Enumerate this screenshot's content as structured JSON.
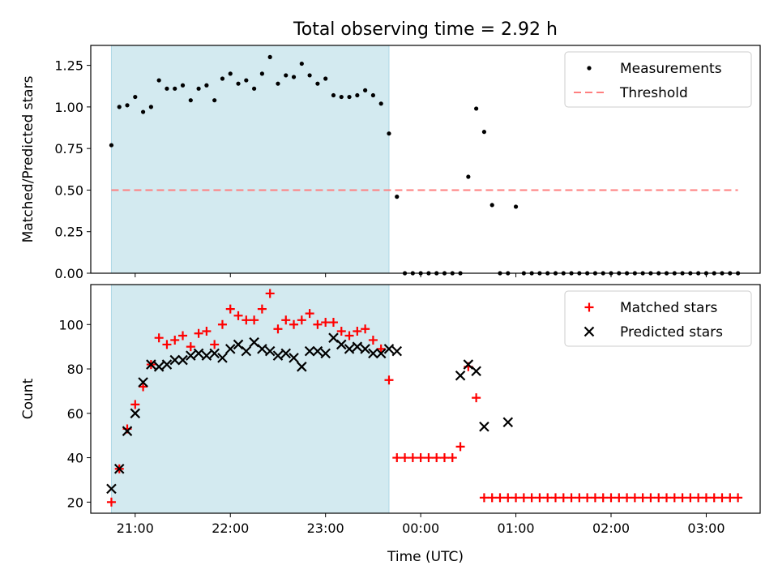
{
  "title": "Total observing time = 2.92 h",
  "colors": {
    "shade": "#d3eaf0",
    "shade_edge": "#add8e6",
    "threshold": "#ff7f7f",
    "matched": "#ff0000",
    "predicted": "#000000",
    "measurement": "#000000"
  },
  "chart_data": [
    {
      "type": "scatter",
      "title": "Total observing time = 2.92 h",
      "xlabel": "",
      "ylabel": "Matched/Predicted stars",
      "xlim": [
        "20:32",
        "03:34"
      ],
      "ylim": [
        0,
        1.37
      ],
      "yticks": [
        "0.00",
        "0.25",
        "0.50",
        "0.75",
        "1.00",
        "1.25"
      ],
      "ytick_values": [
        0,
        0.25,
        0.5,
        0.75,
        1.0,
        1.25
      ],
      "observing_window": [
        "20:45",
        "23:40"
      ],
      "legend_position": "upper right",
      "legend": [
        "Measurements",
        "Threshold"
      ],
      "series": [
        {
          "name": "Measurements",
          "x": [
            "20:45",
            "20:50",
            "20:55",
            "21:00",
            "21:05",
            "21:10",
            "21:15",
            "21:20",
            "21:25",
            "21:30",
            "21:35",
            "21:40",
            "21:45",
            "21:50",
            "21:55",
            "22:00",
            "22:05",
            "22:10",
            "22:15",
            "22:20",
            "22:25",
            "22:30",
            "22:35",
            "22:40",
            "22:45",
            "22:50",
            "22:55",
            "23:00",
            "23:05",
            "23:10",
            "23:15",
            "23:20",
            "23:25",
            "23:30",
            "23:35",
            "23:40",
            "23:45",
            "23:50",
            "23:55",
            "00:00",
            "00:05",
            "00:10",
            "00:15",
            "00:20",
            "00:25",
            "00:30",
            "00:35",
            "00:40",
            "00:45",
            "00:50",
            "00:55",
            "01:00",
            "01:05",
            "01:10",
            "01:15",
            "01:20",
            "01:25",
            "01:30",
            "01:35",
            "01:40",
            "01:45",
            "01:50",
            "01:55",
            "02:00",
            "02:05",
            "02:10",
            "02:15",
            "02:20",
            "02:25",
            "02:30",
            "02:35",
            "02:40",
            "02:45",
            "02:50",
            "02:55",
            "03:00",
            "03:05",
            "03:10",
            "03:15",
            "03:20"
          ],
          "y": [
            0.77,
            1.0,
            1.01,
            1.06,
            0.97,
            1.0,
            1.16,
            1.11,
            1.11,
            1.13,
            1.04,
            1.11,
            1.13,
            1.04,
            1.17,
            1.2,
            1.14,
            1.16,
            1.11,
            1.2,
            1.3,
            1.14,
            1.19,
            1.18,
            1.26,
            1.19,
            1.14,
            1.17,
            1.07,
            1.06,
            1.06,
            1.07,
            1.1,
            1.07,
            1.02,
            0.84,
            0.46,
            0,
            0,
            0,
            0,
            0,
            0,
            0,
            0,
            0.58,
            0.99,
            0.85,
            0.41,
            0,
            0,
            0.4,
            0,
            0,
            0,
            0,
            0,
            0,
            0,
            0,
            0,
            0,
            0,
            0,
            0,
            0,
            0,
            0,
            0,
            0,
            0,
            0,
            0,
            0,
            0,
            0,
            0,
            0,
            0,
            0
          ]
        },
        {
          "name": "Threshold",
          "x": [
            "20:45",
            "03:20"
          ],
          "y": [
            0.5,
            0.5
          ]
        }
      ]
    },
    {
      "type": "scatter",
      "xlabel": "Time (UTC)",
      "ylabel": "Count",
      "xlim": [
        "20:32",
        "03:34"
      ],
      "ylim": [
        15,
        118
      ],
      "yticks": [
        "20",
        "40",
        "60",
        "80",
        "100"
      ],
      "ytick_values": [
        20,
        40,
        60,
        80,
        100
      ],
      "xticks": [
        "21:00",
        "22:00",
        "23:00",
        "00:00",
        "01:00",
        "02:00",
        "03:00"
      ],
      "observing_window": [
        "20:45",
        "23:40"
      ],
      "legend_position": "upper right",
      "legend": [
        "Matched stars",
        "Predicted stars"
      ],
      "series": [
        {
          "name": "Matched stars",
          "x": [
            "20:45",
            "20:50",
            "20:55",
            "21:00",
            "21:05",
            "21:10",
            "21:15",
            "21:20",
            "21:25",
            "21:30",
            "21:35",
            "21:40",
            "21:45",
            "21:50",
            "21:55",
            "22:00",
            "22:05",
            "22:10",
            "22:15",
            "22:20",
            "22:25",
            "22:30",
            "22:35",
            "22:40",
            "22:45",
            "22:50",
            "22:55",
            "23:00",
            "23:05",
            "23:10",
            "23:15",
            "23:20",
            "23:25",
            "23:30",
            "23:35",
            "23:40",
            "23:45",
            "23:50",
            "23:55",
            "00:00",
            "00:05",
            "00:10",
            "00:15",
            "00:20",
            "00:25",
            "00:30",
            "00:35",
            "00:40",
            "00:45",
            "00:50",
            "00:55",
            "01:00",
            "01:05",
            "01:10",
            "01:15",
            "01:20",
            "01:25",
            "01:30",
            "01:35",
            "01:40",
            "01:45",
            "01:50",
            "01:55",
            "02:00",
            "02:05",
            "02:10",
            "02:15",
            "02:20",
            "02:25",
            "02:30",
            "02:35",
            "02:40",
            "02:45",
            "02:50",
            "02:55",
            "03:00",
            "03:05",
            "03:10",
            "03:15",
            "03:20"
          ],
          "y": [
            20,
            35,
            53,
            64,
            72,
            82,
            94,
            91,
            93,
            95,
            90,
            96,
            97,
            91,
            100,
            107,
            104,
            102,
            102,
            107,
            114,
            98,
            102,
            100,
            102,
            105,
            100,
            101,
            101,
            97,
            95,
            97,
            98,
            93,
            89,
            75,
            40,
            40,
            40,
            40,
            40,
            40,
            40,
            40,
            45,
            81,
            67,
            22,
            22,
            22,
            22,
            22,
            22,
            22,
            22,
            22,
            22,
            22,
            22,
            22,
            22,
            22,
            22,
            22,
            22,
            22,
            22,
            22,
            22,
            22,
            22,
            22,
            22,
            22,
            22,
            22,
            22,
            22,
            22,
            22
          ]
        },
        {
          "name": "Predicted stars",
          "x": [
            "20:45",
            "20:50",
            "20:55",
            "21:00",
            "21:05",
            "21:10",
            "21:15",
            "21:20",
            "21:25",
            "21:30",
            "21:35",
            "21:40",
            "21:45",
            "21:50",
            "21:55",
            "22:00",
            "22:05",
            "22:10",
            "22:15",
            "22:20",
            "22:25",
            "22:30",
            "22:35",
            "22:40",
            "22:45",
            "22:50",
            "22:55",
            "23:00",
            "23:05",
            "23:10",
            "23:15",
            "23:20",
            "23:25",
            "23:30",
            "23:35",
            "23:40",
            "23:45",
            "00:25",
            "00:30",
            "00:35",
            "00:40",
            "00:55"
          ],
          "y": [
            26,
            35,
            52,
            60,
            74,
            82,
            81,
            82,
            84,
            84,
            86,
            87,
            86,
            87,
            85,
            89,
            91,
            88,
            92,
            89,
            88,
            86,
            87,
            85,
            81,
            88,
            88,
            87,
            94,
            91,
            89,
            90,
            89,
            87,
            87,
            89,
            88,
            77,
            82,
            79,
            54,
            56
          ]
        }
      ]
    }
  ]
}
